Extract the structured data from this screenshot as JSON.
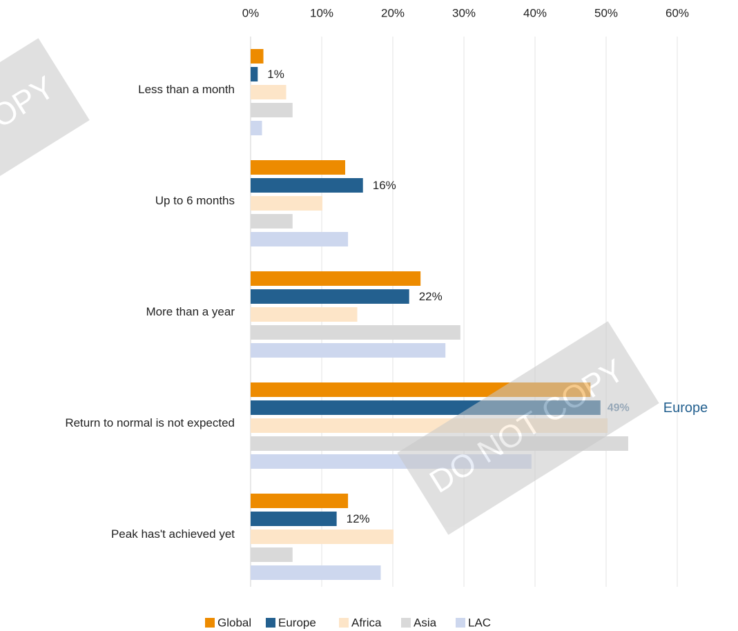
{
  "chart_data": {
    "type": "hbar",
    "categories": [
      "Less than a month",
      "Up to 6 months",
      "More than a year",
      "Return to normal is not expected",
      "Peak has't achieved yet"
    ],
    "series": [
      {
        "name": "Global",
        "color": "#ed8b00",
        "values": [
          1.8,
          13.3,
          23.9,
          47.8,
          13.7
        ]
      },
      {
        "name": "Europe",
        "color": "#23608f",
        "values": [
          1.0,
          15.8,
          22.3,
          49.2,
          12.1
        ],
        "value_labels": [
          "1%",
          "16%",
          "22%",
          "49%",
          "12%"
        ]
      },
      {
        "name": "Africa",
        "color": "#fde5c8",
        "values": [
          5.0,
          10.1,
          15.0,
          50.2,
          20.1
        ]
      },
      {
        "name": "Asia",
        "color": "#d9d9d9",
        "values": [
          5.9,
          5.9,
          29.5,
          53.1,
          5.9
        ]
      },
      {
        "name": "LAC",
        "color": "#cdd7ee",
        "values": [
          1.6,
          13.7,
          27.4,
          39.5,
          18.3
        ]
      }
    ],
    "xlim": [
      0,
      60
    ],
    "xticks": [
      {
        "value": 0,
        "label": "0%"
      },
      {
        "value": 10,
        "label": "10%"
      },
      {
        "value": 20,
        "label": "20%"
      },
      {
        "value": 30,
        "label": "30%"
      },
      {
        "value": 40,
        "label": "40%"
      },
      {
        "value": 50,
        "label": "50%"
      },
      {
        "value": 60,
        "label": "60%"
      }
    ],
    "grid": true,
    "legend": "bottom",
    "annotation": "Europe",
    "watermark": "DO NOT COPY"
  }
}
